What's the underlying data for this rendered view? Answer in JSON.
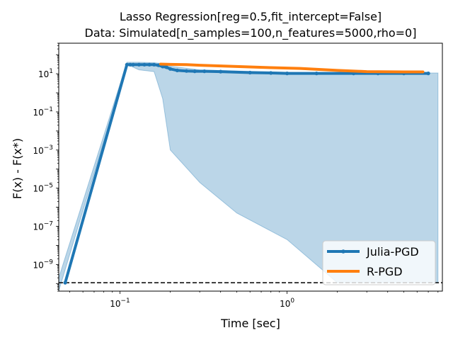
{
  "chart_data": {
    "type": "line",
    "title_line1": "Lasso Regression[reg=0.5,fit_intercept=False]",
    "title_line2": "Data: Simulated[n_samples=100,n_features=5000,rho=0]",
    "xlabel": "Time [sec]",
    "ylabel": "F(x) - F(x*)",
    "xscale": "log",
    "yscale": "log",
    "xlim": [
      0.043,
      8.5
    ],
    "ylim": [
      4e-11,
      400
    ],
    "x_tick_labels": [
      {
        "value": 0.1,
        "base": "10",
        "exp": "−1"
      },
      {
        "value": 1,
        "base": "10",
        "exp": "0"
      }
    ],
    "y_tick_labels": [
      {
        "value": 10,
        "base": "10",
        "exp": "1"
      },
      {
        "value": 0.1,
        "base": "10",
        "exp": "−1"
      },
      {
        "value": 0.001,
        "base": "10",
        "exp": "−3"
      },
      {
        "value": 1e-05,
        "base": "10",
        "exp": "−5"
      },
      {
        "value": 1e-07,
        "base": "10",
        "exp": "−7"
      },
      {
        "value": 1e-09,
        "base": "10",
        "exp": "−9"
      }
    ],
    "hline": {
      "y": 1.1e-10,
      "style": "dashed",
      "color": "#000000"
    },
    "legend_position": "lower right",
    "series": [
      {
        "name": "Julia-PGD",
        "color": "#1f77b4",
        "marker": "dot",
        "x": [
          0.047,
          0.11,
          0.115,
          0.12,
          0.13,
          0.14,
          0.15,
          0.16,
          0.17,
          0.18,
          0.19,
          0.2,
          0.22,
          0.25,
          0.28,
          0.32,
          0.4,
          0.6,
          0.8,
          1.0,
          1.5,
          2.5,
          3.5,
          5.0,
          7.0
        ],
        "y": [
          1.1e-10,
          30,
          30,
          30,
          30,
          30,
          30,
          30,
          28,
          24,
          22,
          18,
          15,
          14,
          13.5,
          13.5,
          13,
          11.5,
          11,
          10.5,
          10.5,
          10.5,
          10.5,
          10.5,
          10.5
        ]
      },
      {
        "name": "R-PGD",
        "color": "#ff7f0e",
        "marker": "none",
        "x": [
          0.175,
          0.2,
          0.25,
          0.3,
          0.5,
          0.8,
          1.2,
          2.0,
          3.0,
          5.0,
          6.5
        ],
        "y": [
          32,
          31,
          30,
          28,
          24,
          21,
          19,
          15,
          13,
          12.5,
          12.5
        ]
      }
    ],
    "band": {
      "series": "Julia-PGD",
      "color": "#1f77b4",
      "opacity": 0.3,
      "x": [
        0.043,
        0.11,
        0.115,
        0.13,
        0.16,
        0.18,
        0.2,
        0.3,
        0.5,
        1.0,
        2.0,
        5.0,
        8.0
      ],
      "upper": [
        2e-10,
        40,
        40,
        40,
        38,
        34,
        25,
        16,
        14,
        12,
        11,
        11,
        11
      ],
      "lower": [
        4e-11,
        30,
        26,
        16,
        13,
        0.5,
        0.001,
        2e-05,
        5e-07,
        2e-08,
        1.1e-10,
        1.1e-10,
        1.1e-10
      ]
    }
  }
}
